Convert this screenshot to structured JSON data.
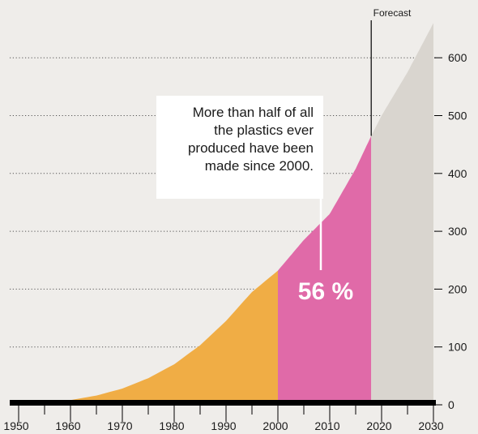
{
  "colors": {
    "background": "#efedea",
    "historical_area": "#f0ad45",
    "since_2000_area": "#e06aa8",
    "forecast_area": "#d9d5cf",
    "axis": "#000000"
  },
  "chart_data": {
    "type": "area",
    "title": "",
    "xlabel": "",
    "ylabel": "",
    "xlim": [
      1950,
      2030
    ],
    "ylim": [
      0,
      600
    ],
    "x_ticks": [
      1950,
      1960,
      1970,
      1980,
      1990,
      2000,
      2010,
      2020,
      2030
    ],
    "y_ticks": [
      0,
      100,
      200,
      300,
      400,
      500,
      600
    ],
    "gridlines": "horizontal dotted",
    "y_axis_side": "right",
    "x": [
      1950,
      1955,
      1960,
      1965,
      1970,
      1975,
      1980,
      1985,
      1990,
      1995,
      2000,
      2005,
      2010,
      2015,
      2018,
      2020,
      2025,
      2030
    ],
    "y": [
      2,
      4,
      8,
      16,
      28,
      46,
      70,
      103,
      145,
      195,
      232,
      285,
      330,
      408,
      465,
      500,
      575,
      660
    ],
    "segments": [
      {
        "from": 1950,
        "to": 2000,
        "color": "#f0ad45"
      },
      {
        "from": 2000,
        "to": 2018,
        "color": "#e06aa8",
        "label": "56 %"
      },
      {
        "from": 2018,
        "to": 2030,
        "color": "#d9d5cf",
        "label": "Forecast"
      }
    ],
    "forecast_label": "Forecast",
    "forecast_start": 2018,
    "percent_label": "56 %",
    "annotation": [
      "More than half of all",
      "the plastics ever",
      "produced have been",
      "made since 2000."
    ]
  }
}
